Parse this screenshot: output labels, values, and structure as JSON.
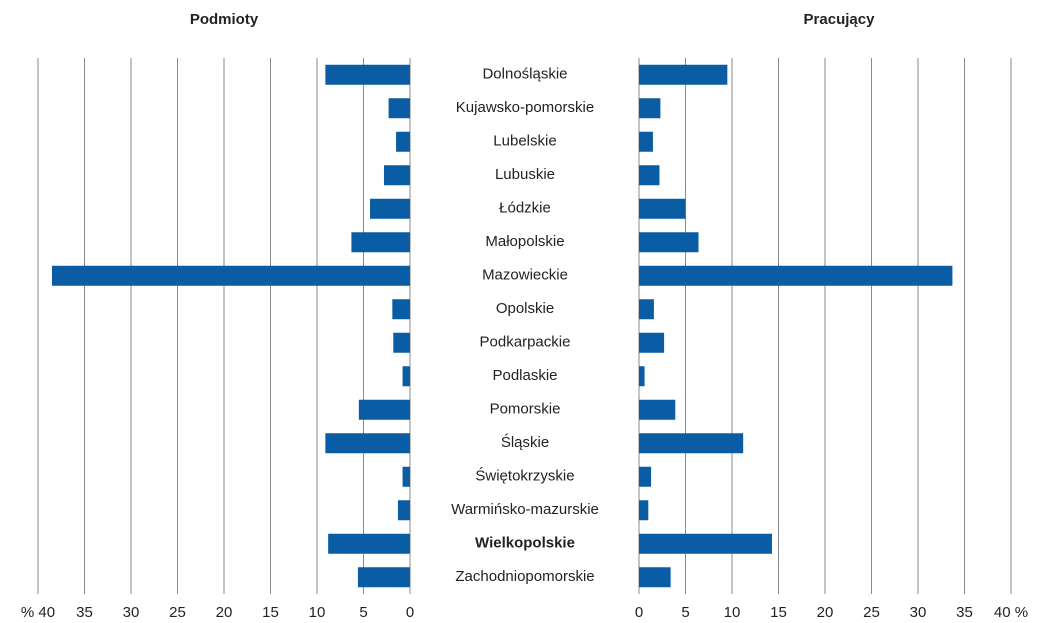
{
  "chart_data": {
    "type": "butterfly",
    "categories": [
      "Dolnośląskie",
      "Kujawsko-pomorskie",
      "Lubelskie",
      "Lubuskie",
      "Łódzkie",
      "Małopolskie",
      "Mazowieckie",
      "Opolskie",
      "Podkarpackie",
      "Podlaskie",
      "Pomorskie",
      "Śląskie",
      "Świętokrzyskie",
      "Warmińsko-mazurskie",
      "Wielkopolskie",
      "Zachodniopomorskie"
    ],
    "highlight": "Wielkopolskie",
    "grid": true,
    "xlim": [
      0,
      40
    ],
    "series": [
      {
        "name": "Podmioty",
        "color": "#0a5ca4",
        "side": "left",
        "values": [
          9.1,
          2.3,
          1.5,
          2.8,
          4.3,
          6.3,
          38.5,
          1.9,
          1.8,
          0.8,
          5.5,
          9.1,
          0.8,
          1.3,
          8.8,
          5.6
        ],
        "xticks": [
          0,
          5,
          10,
          15,
          20,
          25,
          30,
          35,
          {
            "value": 40,
            "label": "% 40"
          }
        ]
      },
      {
        "name": "Pracujący",
        "color": "#0a5ca4",
        "side": "right",
        "values": [
          9.5,
          2.3,
          1.5,
          2.2,
          5.0,
          6.4,
          33.7,
          1.6,
          2.7,
          0.6,
          3.9,
          11.2,
          1.3,
          1.0,
          14.3,
          3.4
        ],
        "xticks": [
          0,
          5,
          10,
          15,
          20,
          25,
          30,
          35,
          {
            "value": 40,
            "label": "40 %"
          }
        ]
      }
    ]
  }
}
